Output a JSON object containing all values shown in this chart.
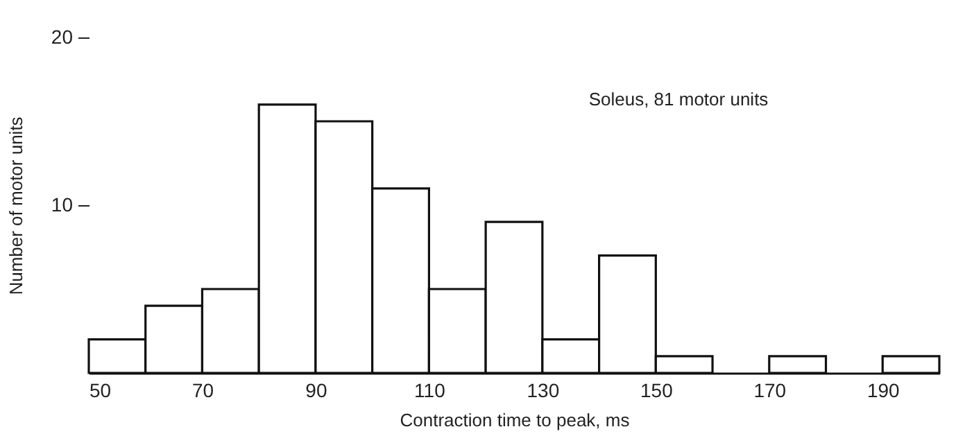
{
  "chart_data": {
    "type": "histogram",
    "bins": [
      50,
      60,
      70,
      80,
      90,
      100,
      110,
      120,
      130,
      140,
      150,
      160,
      170,
      180,
      190,
      200
    ],
    "values": [
      2,
      4,
      5,
      16,
      15,
      11,
      5,
      9,
      2,
      7,
      1,
      0,
      1,
      0,
      1
    ],
    "color": "#ffffff",
    "xlabel": "Contraction time to peak, ms",
    "ylabel": "Number of motor units",
    "annotations": [
      "Soleus, 81 motor units"
    ],
    "xlim": [
      50,
      200
    ],
    "xticks": [
      50,
      70,
      90,
      110,
      130,
      150,
      170,
      190
    ],
    "ylim": [
      0,
      20
    ],
    "yticks": [
      10,
      20
    ],
    "grid": false
  }
}
